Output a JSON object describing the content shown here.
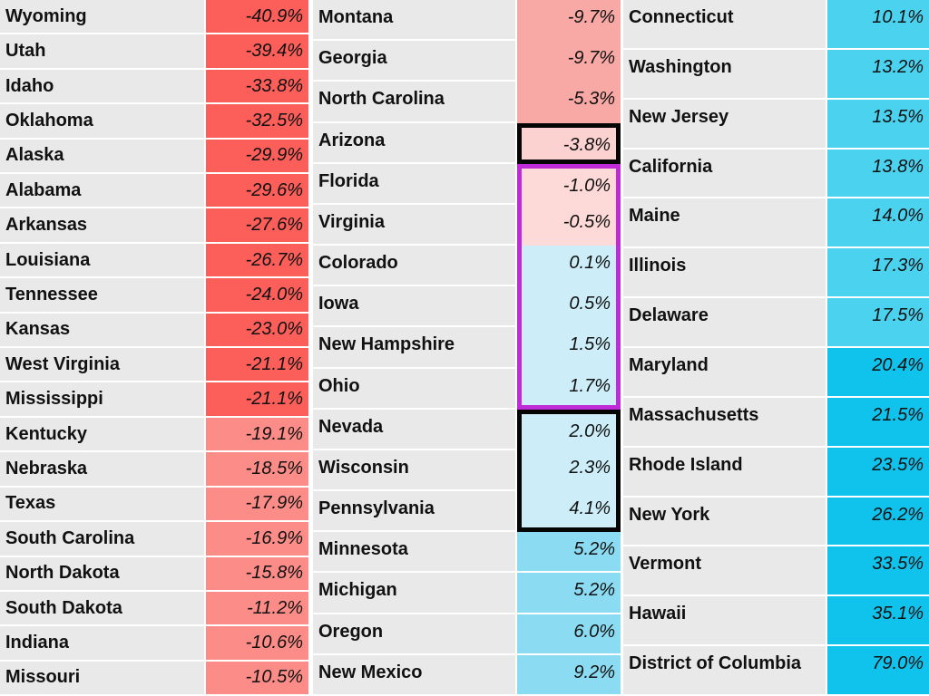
{
  "colors": {
    "red_strong": "#fc5e5a",
    "red_medium": "#fc8c87",
    "red_light": "#f9a9a5",
    "pink_pale": "#fcd2d0",
    "pink_palest": "#fdd9d8",
    "blue_palest": "#cdeef9",
    "blue_light": "#8bdcf2",
    "blue_medium": "#4bd2ef",
    "blue_strong": "#10c3ec",
    "name_cell_bg": "#e9e9e9",
    "divider": "#ffffff",
    "box_black": "#050505",
    "box_purple": "#c02bd8"
  },
  "table": {
    "columns": [
      {
        "id": "left",
        "rows": [
          {
            "name": "Wyoming",
            "value": "-40.9%",
            "band": "red_strong"
          },
          {
            "name": "Utah",
            "value": "-39.4%",
            "band": "red_strong"
          },
          {
            "name": "Idaho",
            "value": "-33.8%",
            "band": "red_strong"
          },
          {
            "name": "Oklahoma",
            "value": "-32.5%",
            "band": "red_strong"
          },
          {
            "name": "Alaska",
            "value": "-29.9%",
            "band": "red_strong"
          },
          {
            "name": "Alabama",
            "value": "-29.6%",
            "band": "red_strong"
          },
          {
            "name": "Arkansas",
            "value": "-27.6%",
            "band": "red_strong"
          },
          {
            "name": "Louisiana",
            "value": "-26.7%",
            "band": "red_strong"
          },
          {
            "name": "Tennessee",
            "value": "-24.0%",
            "band": "red_strong"
          },
          {
            "name": "Kansas",
            "value": "-23.0%",
            "band": "red_strong"
          },
          {
            "name": "West Virginia",
            "value": "-21.1%",
            "band": "red_strong"
          },
          {
            "name": "Mississippi",
            "value": "-21.1%",
            "band": "red_strong"
          },
          {
            "name": "Kentucky",
            "value": "-19.1%",
            "band": "red_medium"
          },
          {
            "name": "Nebraska",
            "value": "-18.5%",
            "band": "red_medium"
          },
          {
            "name": "Texas",
            "value": "-17.9%",
            "band": "red_medium"
          },
          {
            "name": "South Carolina",
            "value": "-16.9%",
            "band": "red_medium"
          },
          {
            "name": "North Dakota",
            "value": "-15.8%",
            "band": "red_medium"
          },
          {
            "name": "South Dakota",
            "value": "-11.2%",
            "band": "red_medium"
          },
          {
            "name": "Indiana",
            "value": "-10.6%",
            "band": "red_medium"
          },
          {
            "name": "Missouri",
            "value": "-10.5%",
            "band": "red_medium"
          }
        ]
      },
      {
        "id": "middle",
        "rows": [
          {
            "name": "Montana",
            "value": "-9.7%",
            "band": "red_light",
            "nodiv": true
          },
          {
            "name": "Georgia",
            "value": "-9.7%",
            "band": "red_light",
            "nodiv": true
          },
          {
            "name": "North Carolina",
            "value": "-5.3%",
            "band": "red_light",
            "nodiv": true
          },
          {
            "name": "Arizona",
            "value": "-3.8%",
            "band": "pink_pale",
            "box": {
              "color": "box_black",
              "pos": "single"
            }
          },
          {
            "name": "Florida",
            "value": "-1.0%",
            "band": "pink_palest",
            "box": {
              "color": "box_purple",
              "pos": "top"
            }
          },
          {
            "name": "Virginia",
            "value": "-0.5%",
            "band": "pink_palest",
            "box": {
              "color": "box_purple",
              "pos": "mid"
            }
          },
          {
            "name": "Colorado",
            "value": "0.1%",
            "band": "blue_palest",
            "box": {
              "color": "box_purple",
              "pos": "mid"
            }
          },
          {
            "name": "Iowa",
            "value": "0.5%",
            "band": "blue_palest",
            "box": {
              "color": "box_purple",
              "pos": "mid"
            }
          },
          {
            "name": "New Hampshire",
            "value": "1.5%",
            "band": "blue_palest",
            "box": {
              "color": "box_purple",
              "pos": "mid"
            }
          },
          {
            "name": "Ohio",
            "value": "1.7%",
            "band": "blue_palest",
            "box": {
              "color": "box_purple",
              "pos": "bottom"
            }
          },
          {
            "name": "Nevada",
            "value": "2.0%",
            "band": "blue_palest",
            "box": {
              "color": "box_black",
              "pos": "top"
            }
          },
          {
            "name": "Wisconsin",
            "value": "2.3%",
            "band": "blue_palest",
            "box": {
              "color": "box_black",
              "pos": "mid"
            }
          },
          {
            "name": "Pennsylvania",
            "value": "4.1%",
            "band": "blue_palest",
            "box": {
              "color": "box_black",
              "pos": "bottom"
            }
          },
          {
            "name": "Minnesota",
            "value": "5.2%",
            "band": "blue_light"
          },
          {
            "name": "Michigan",
            "value": "5.2%",
            "band": "blue_light"
          },
          {
            "name": "Oregon",
            "value": "6.0%",
            "band": "blue_light"
          },
          {
            "name": "New Mexico",
            "value": "9.2%",
            "band": "blue_light"
          }
        ]
      },
      {
        "id": "right",
        "rows": [
          {
            "name": "Connecticut",
            "value": "10.1%",
            "band": "blue_medium"
          },
          {
            "name": "Washington",
            "value": "13.2%",
            "band": "blue_medium"
          },
          {
            "name": "New Jersey",
            "value": "13.5%",
            "band": "blue_medium"
          },
          {
            "name": "California",
            "value": "13.8%",
            "band": "blue_medium"
          },
          {
            "name": "Maine",
            "value": "14.0%",
            "band": "blue_medium"
          },
          {
            "name": "Illinois",
            "value": "17.3%",
            "band": "blue_medium"
          },
          {
            "name": "Delaware",
            "value": "17.5%",
            "band": "blue_medium"
          },
          {
            "name": "Maryland",
            "value": "20.4%",
            "band": "blue_strong"
          },
          {
            "name": "Massachusetts",
            "value": "21.5%",
            "band": "blue_strong"
          },
          {
            "name": "Rhode Island",
            "value": "23.5%",
            "band": "blue_strong"
          },
          {
            "name": "New York",
            "value": "26.2%",
            "band": "blue_strong"
          },
          {
            "name": "Vermont",
            "value": "33.5%",
            "band": "blue_strong"
          },
          {
            "name": "Hawaii",
            "value": "35.1%",
            "band": "blue_strong"
          },
          {
            "name": "District of Columbia",
            "value": "79.0%",
            "band": "blue_strong"
          }
        ]
      }
    ]
  },
  "chart_data": {
    "type": "table",
    "title": "",
    "value_format": "percent",
    "layout": "three column groups sorted ascending, color-coded red (negative) to cyan (positive)",
    "entries": [
      {
        "state": "Wyoming",
        "value": -40.9
      },
      {
        "state": "Utah",
        "value": -39.4
      },
      {
        "state": "Idaho",
        "value": -33.8
      },
      {
        "state": "Oklahoma",
        "value": -32.5
      },
      {
        "state": "Alaska",
        "value": -29.9
      },
      {
        "state": "Alabama",
        "value": -29.6
      },
      {
        "state": "Arkansas",
        "value": -27.6
      },
      {
        "state": "Louisiana",
        "value": -26.7
      },
      {
        "state": "Tennessee",
        "value": -24.0
      },
      {
        "state": "Kansas",
        "value": -23.0
      },
      {
        "state": "West Virginia",
        "value": -21.1
      },
      {
        "state": "Mississippi",
        "value": -21.1
      },
      {
        "state": "Kentucky",
        "value": -19.1
      },
      {
        "state": "Nebraska",
        "value": -18.5
      },
      {
        "state": "Texas",
        "value": -17.9
      },
      {
        "state": "South Carolina",
        "value": -16.9
      },
      {
        "state": "North Dakota",
        "value": -15.8
      },
      {
        "state": "South Dakota",
        "value": -11.2
      },
      {
        "state": "Indiana",
        "value": -10.6
      },
      {
        "state": "Missouri",
        "value": -10.5
      },
      {
        "state": "Montana",
        "value": -9.7
      },
      {
        "state": "Georgia",
        "value": -9.7
      },
      {
        "state": "North Carolina",
        "value": -5.3
      },
      {
        "state": "Arizona",
        "value": -3.8
      },
      {
        "state": "Florida",
        "value": -1.0
      },
      {
        "state": "Virginia",
        "value": -0.5
      },
      {
        "state": "Colorado",
        "value": 0.1
      },
      {
        "state": "Iowa",
        "value": 0.5
      },
      {
        "state": "New Hampshire",
        "value": 1.5
      },
      {
        "state": "Ohio",
        "value": 1.7
      },
      {
        "state": "Nevada",
        "value": 2.0
      },
      {
        "state": "Wisconsin",
        "value": 2.3
      },
      {
        "state": "Pennsylvania",
        "value": 4.1
      },
      {
        "state": "Minnesota",
        "value": 5.2
      },
      {
        "state": "Michigan",
        "value": 5.2
      },
      {
        "state": "Oregon",
        "value": 6.0
      },
      {
        "state": "New Mexico",
        "value": 9.2
      },
      {
        "state": "Connecticut",
        "value": 10.1
      },
      {
        "state": "Washington",
        "value": 13.2
      },
      {
        "state": "New Jersey",
        "value": 13.5
      },
      {
        "state": "California",
        "value": 13.8
      },
      {
        "state": "Maine",
        "value": 14.0
      },
      {
        "state": "Illinois",
        "value": 17.3
      },
      {
        "state": "Delaware",
        "value": 17.5
      },
      {
        "state": "Maryland",
        "value": 20.4
      },
      {
        "state": "Massachusetts",
        "value": 21.5
      },
      {
        "state": "Rhode Island",
        "value": 23.5
      },
      {
        "state": "New York",
        "value": 26.2
      },
      {
        "state": "Vermont",
        "value": 33.5
      },
      {
        "state": "Hawaii",
        "value": 35.1
      },
      {
        "state": "District of Columbia",
        "value": 79.0
      }
    ],
    "highlights": [
      {
        "states": [
          "Arizona"
        ],
        "border_color": "#050505"
      },
      {
        "states": [
          "Florida",
          "Virginia",
          "Colorado",
          "Iowa",
          "New Hampshire",
          "Ohio"
        ],
        "border_color": "#c02bd8"
      },
      {
        "states": [
          "Nevada",
          "Wisconsin",
          "Pennsylvania"
        ],
        "border_color": "#050505"
      }
    ]
  }
}
